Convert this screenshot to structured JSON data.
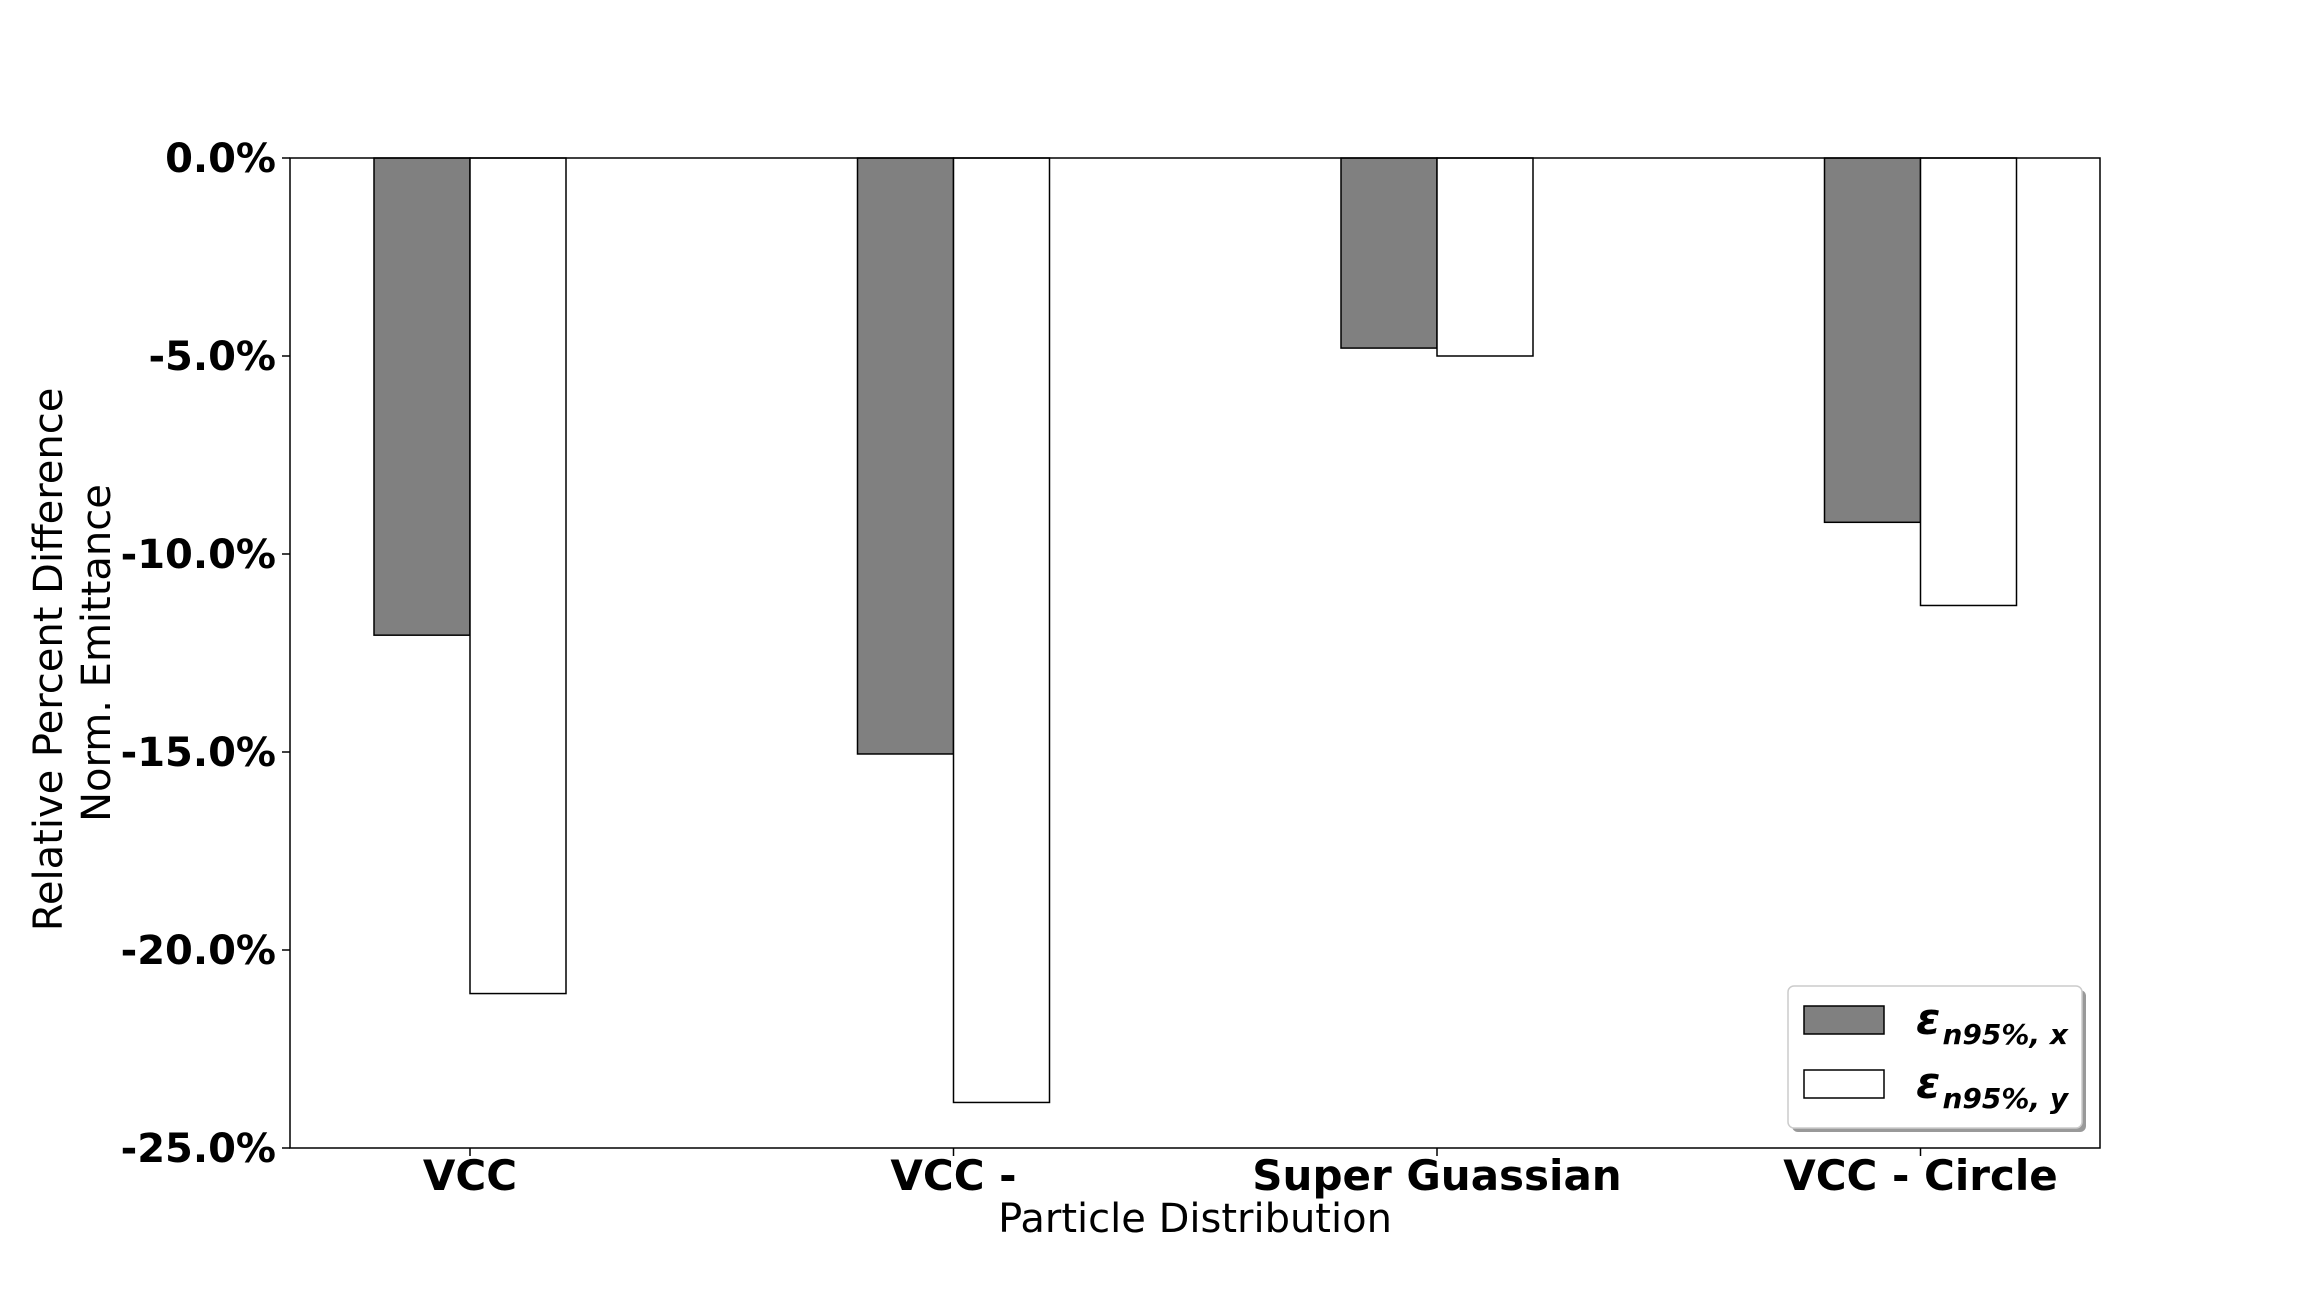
{
  "chart_data": {
    "type": "bar",
    "categories": [
      "VCC",
      "VCC -",
      "Super Guassian",
      "VCC - Circle"
    ],
    "series": [
      {
        "name": "ε n95%, x",
        "symbol": "ε",
        "subscript": "n95%, x",
        "color": "#808080",
        "values": [
          -12.05,
          -15.05,
          -4.8,
          -9.2
        ]
      },
      {
        "name": "ε n95%, y",
        "symbol": "ε",
        "subscript": "n95%, y",
        "color": "#ffffff",
        "values": [
          -21.1,
          -23.85,
          -5.0,
          -11.3
        ]
      }
    ],
    "ylim": [
      -25.0,
      0.0
    ],
    "yticks": [
      0.0,
      -5.0,
      -10.0,
      -15.0,
      -20.0,
      -25.0
    ],
    "ytick_labels": [
      "0.0%",
      "-5.0%",
      "-10.0%",
      "-15.0%",
      "-20.0%",
      "-25.0%"
    ],
    "xlabel": "Particle Distribution",
    "ylabel_lines": [
      "Relative Percent Difference",
      "Norm. Emittance"
    ],
    "grid": false,
    "legend_position": "bottom-right"
  }
}
